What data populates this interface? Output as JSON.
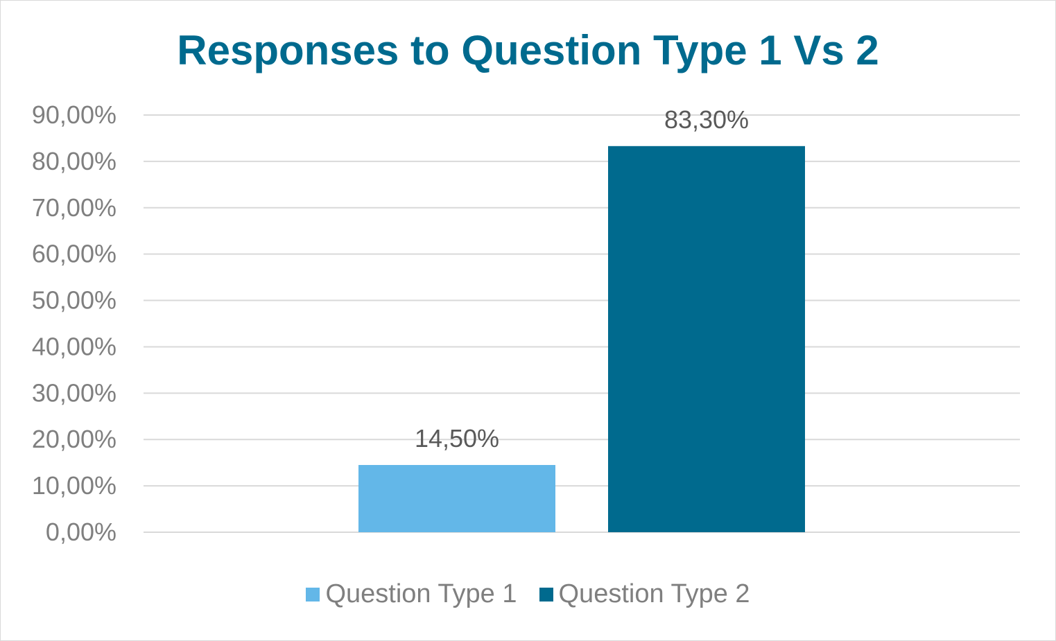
{
  "chart_data": {
    "type": "bar",
    "title": "Responses to Question Type 1 Vs 2",
    "xlabel": "",
    "ylabel": "",
    "ylim": [
      0,
      90
    ],
    "yticks": [
      0,
      10,
      20,
      30,
      40,
      50,
      60,
      70,
      80,
      90
    ],
    "ytick_labels": [
      "0,00%",
      "10,00%",
      "20,00%",
      "30,00%",
      "40,00%",
      "50,00%",
      "60,00%",
      "70,00%",
      "80,00%",
      "90,00%"
    ],
    "grid": true,
    "legend_position": "bottom",
    "series": [
      {
        "name": "Question Type 1",
        "values": [
          14.5
        ],
        "label": "14,50%",
        "color": "#63b7e8"
      },
      {
        "name": "Question Type 2",
        "values": [
          83.3
        ],
        "label": "83,30%",
        "color": "#006a8e"
      }
    ]
  }
}
